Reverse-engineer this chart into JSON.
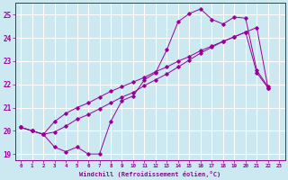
{
  "xlabel": "Windchill (Refroidissement éolien,°C)",
  "bg_color": "#cce8f0",
  "line_color": "#990099",
  "grid_color": "#ffffff",
  "xlim": [
    -0.5,
    23.5
  ],
  "ylim": [
    18.75,
    25.5
  ],
  "yticks": [
    19,
    20,
    21,
    22,
    23,
    24,
    25
  ],
  "xticks": [
    0,
    1,
    2,
    3,
    4,
    5,
    6,
    7,
    8,
    9,
    10,
    11,
    12,
    13,
    14,
    15,
    16,
    17,
    18,
    19,
    20,
    21,
    22,
    23
  ],
  "xtick_labels": [
    "0",
    "1",
    "2",
    "3",
    "4",
    "5",
    "6",
    "7",
    "8",
    "9",
    "10",
    "11",
    "12",
    "13",
    "14",
    "15",
    "16",
    "17",
    "18",
    "19",
    "20",
    "21",
    "22",
    "23"
  ],
  "line1_x": [
    0,
    1,
    2,
    3,
    4,
    5,
    6,
    7,
    8,
    9,
    10,
    11,
    12,
    13,
    14,
    15,
    16,
    17,
    18,
    19,
    20,
    21,
    22
  ],
  "line1_y": [
    20.15,
    20.0,
    19.85,
    19.3,
    19.1,
    19.3,
    19.0,
    19.0,
    20.4,
    21.3,
    21.5,
    22.2,
    22.5,
    23.5,
    24.7,
    25.05,
    25.25,
    24.8,
    24.6,
    24.9,
    24.85,
    22.6,
    21.9
  ],
  "line2_x": [
    0,
    1,
    2,
    3,
    4,
    5,
    6,
    7,
    8,
    9,
    10,
    11,
    12,
    13,
    14,
    15,
    16,
    17,
    18,
    19,
    20,
    21,
    22
  ],
  "line2_y": [
    20.15,
    20.0,
    19.85,
    20.4,
    20.75,
    21.0,
    21.2,
    21.45,
    21.7,
    21.9,
    22.1,
    22.3,
    22.55,
    22.75,
    23.0,
    23.2,
    23.45,
    23.65,
    23.85,
    24.05,
    24.25,
    24.45,
    21.85
  ],
  "line3_x": [
    0,
    1,
    2,
    3,
    4,
    5,
    6,
    7,
    8,
    9,
    10,
    11,
    12,
    13,
    14,
    15,
    16,
    17,
    18,
    19,
    20,
    21,
    22
  ],
  "line3_y": [
    20.15,
    20.0,
    19.85,
    19.95,
    20.2,
    20.5,
    20.7,
    20.95,
    21.2,
    21.45,
    21.65,
    21.95,
    22.2,
    22.45,
    22.75,
    23.05,
    23.35,
    23.6,
    23.85,
    24.05,
    24.25,
    22.5,
    21.85
  ]
}
